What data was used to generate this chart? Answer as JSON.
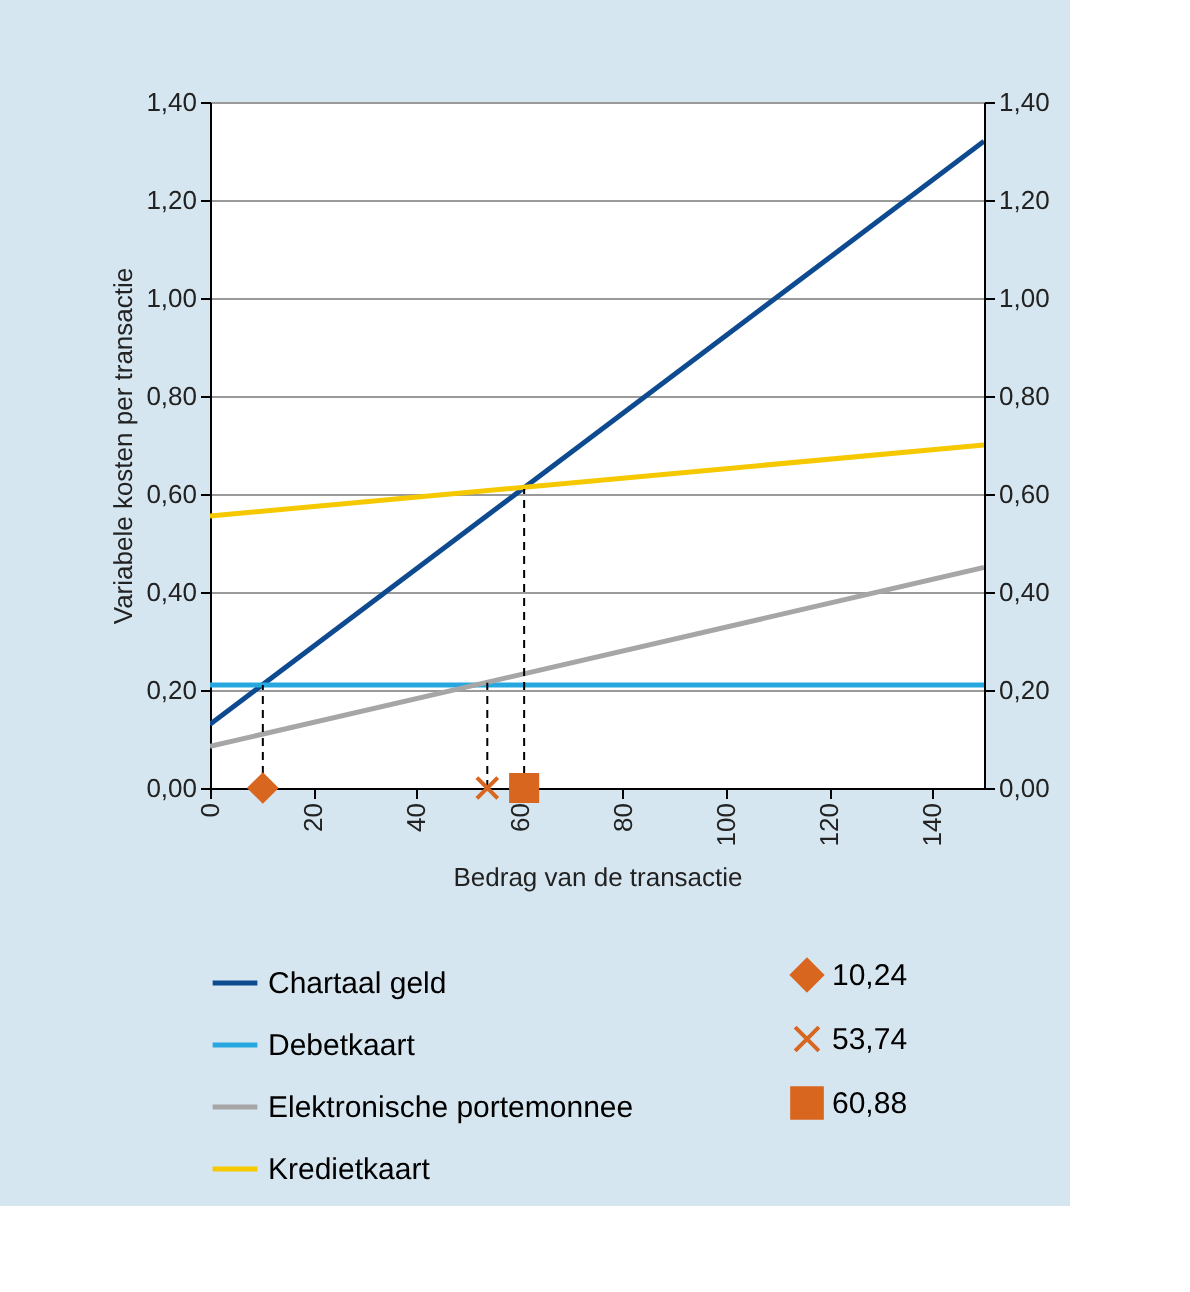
{
  "chart_data": {
    "type": "line",
    "xlabel": "Bedrag van de transactie",
    "ylabel": "Variabele kosten per transactie",
    "xlim": [
      0,
      150
    ],
    "xticks": [
      0,
      20,
      40,
      60,
      80,
      100,
      120,
      140
    ],
    "ylim": [
      0,
      1.4
    ],
    "yticks": [
      {
        "value": 0,
        "label": "0,00"
      },
      {
        "value": 0.2,
        "label": "0,20"
      },
      {
        "value": 0.4,
        "label": "0,40"
      },
      {
        "value": 0.6,
        "label": "0,60"
      },
      {
        "value": 0.8,
        "label": "0,80"
      },
      {
        "value": 1,
        "label": "1,00"
      },
      {
        "value": 1.2,
        "label": "1,20"
      },
      {
        "value": 1.4,
        "label": "1,40"
      }
    ],
    "y2lim": [
      0,
      1.4
    ],
    "y2ticks": [
      {
        "value": 0,
        "label": "0,00"
      },
      {
        "value": 0.2,
        "label": "0,20"
      },
      {
        "value": 0.4,
        "label": "0,40"
      },
      {
        "value": 0.6,
        "label": "0,60"
      },
      {
        "value": 0.8,
        "label": "0,80"
      },
      {
        "value": 1,
        "label": "1,00"
      },
      {
        "value": 1.2,
        "label": "1,20"
      },
      {
        "value": 1.4,
        "label": "1,40"
      }
    ],
    "grid": "y",
    "legend": "bottom",
    "series": [
      {
        "name": "Chartaal geld",
        "color": "#0d4a8f",
        "x": [
          0,
          150
        ],
        "values": [
          0.13,
          1.32
        ]
      },
      {
        "name": "Debetkaart",
        "color": "#27a7df",
        "x": [
          0,
          150
        ],
        "values": [
          0.21,
          0.21
        ]
      },
      {
        "name": "Elektronische portemonnee",
        "color": "#a6a6a6",
        "x": [
          0,
          150
        ],
        "values": [
          0.085,
          0.45
        ]
      },
      {
        "name": "Kredietkaart",
        "color": "#f5c800",
        "x": [
          0,
          150
        ],
        "values": [
          0.555,
          0.7
        ]
      },
      {
        "type": "line",
        "line_style": "dashed",
        "color": "#000000",
        "x": [
          10.24,
          10.24
        ],
        "values": [
          0,
          0.21
        ]
      },
      {
        "type": "line",
        "line_style": "dashed",
        "color": "#000000",
        "x": [
          53.74,
          53.74
        ],
        "values": [
          0,
          0.215
        ]
      },
      {
        "type": "line",
        "line_style": "dashed",
        "color": "#000000",
        "x": [
          60.88,
          60.88
        ],
        "values": [
          0,
          0.61
        ]
      },
      {
        "name": "10,24",
        "type": "scatter",
        "marker": "diamond",
        "color": "#d9661f",
        "x": [
          10.24
        ],
        "values": [
          0
        ]
      },
      {
        "name": "53,74",
        "type": "scatter",
        "marker": "cross",
        "color": "#d9661f",
        "x": [
          53.74
        ],
        "values": [
          0
        ]
      },
      {
        "name": "60,88",
        "type": "scatter",
        "marker": "square",
        "color": "#d9661f",
        "x": [
          60.88
        ],
        "values": [
          0
        ]
      }
    ]
  }
}
